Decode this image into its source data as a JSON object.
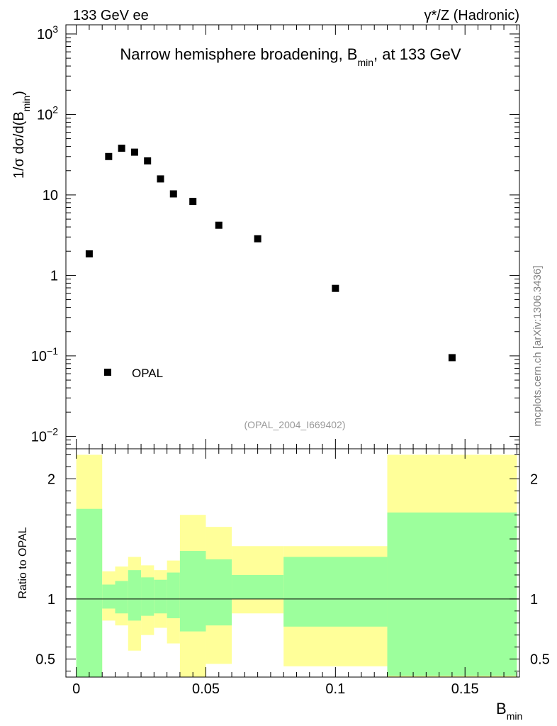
{
  "header": {
    "left": "133 GeV ee",
    "right": "γ*/Z (Hadronic)"
  },
  "watermark": "mcplots.cern.ch [arXiv:1306.3436]",
  "chart_data": [
    {
      "type": "scatter",
      "title_main": "Narrow hemisphere broadening, B",
      "title_sub": "min",
      "title_tail": ", at 133 GeV",
      "reference": "(OPAL_2004_I669402)",
      "ylabel": {
        "pre": "1/σ  dσ/d(B",
        "sub": "min",
        "post": ")"
      },
      "yscale": "log",
      "ylim": [
        0.007,
        1300
      ],
      "xlim": [
        -0.004,
        0.171
      ],
      "ytick_labels": [
        {
          "value": 1000,
          "base": "10",
          "exp": "3"
        },
        {
          "value": 100,
          "base": "10",
          "exp": "2"
        },
        {
          "value": 10,
          "base": "10",
          "exp": ""
        },
        {
          "value": 1,
          "base": "1",
          "exp": ""
        },
        {
          "value": 0.1,
          "base": "10",
          "exp": "−1"
        },
        {
          "value": 0.01,
          "base": "10",
          "exp": "−2"
        }
      ],
      "legend": {
        "placement": "bottom-left",
        "label": "OPAL"
      },
      "series": [
        {
          "name": "OPAL",
          "x": [
            0.005,
            0.0125,
            0.0175,
            0.0225,
            0.0275,
            0.0325,
            0.0375,
            0.045,
            0.055,
            0.07,
            0.1,
            0.145
          ],
          "y": [
            1.85,
            30.0,
            38.0,
            34.0,
            26.5,
            15.8,
            10.3,
            8.3,
            4.2,
            2.85,
            0.69,
            0.095
          ]
        }
      ]
    },
    {
      "type": "ratio",
      "ylabel": "Ratio to OPAL",
      "ylim": [
        0.35,
        2.25
      ],
      "xlim": [
        -0.004,
        0.171
      ],
      "yticks": [
        2,
        1,
        0.5
      ],
      "ytick_labels": [
        "2",
        "1",
        "0.5"
      ],
      "xticks": [
        0,
        0.05,
        0.1,
        0.15
      ],
      "xtick_labels": [
        "0",
        "0.05",
        "0.1",
        "0.15"
      ],
      "xlabel": {
        "main": "B",
        "sub": "min"
      },
      "band_colors": {
        "inner": "#9cff9c",
        "outer": "#ffff99"
      },
      "bands": [
        {
          "x0": 0.0,
          "x1": 0.01,
          "outer": [
            0.35,
            2.2
          ],
          "inner": [
            0.35,
            1.75
          ]
        },
        {
          "x0": 0.01,
          "x1": 0.015,
          "outer": [
            0.82,
            1.23
          ],
          "inner": [
            0.92,
            1.12
          ]
        },
        {
          "x0": 0.015,
          "x1": 0.02,
          "outer": [
            0.78,
            1.27
          ],
          "inner": [
            0.88,
            1.15
          ]
        },
        {
          "x0": 0.02,
          "x1": 0.025,
          "outer": [
            0.57,
            1.35
          ],
          "inner": [
            0.82,
            1.24
          ]
        },
        {
          "x0": 0.025,
          "x1": 0.03,
          "outer": [
            0.7,
            1.28
          ],
          "inner": [
            0.86,
            1.18
          ]
        },
        {
          "x0": 0.03,
          "x1": 0.035,
          "outer": [
            0.76,
            1.24
          ],
          "inner": [
            0.88,
            1.16
          ]
        },
        {
          "x0": 0.035,
          "x1": 0.04,
          "outer": [
            0.63,
            1.32
          ],
          "inner": [
            0.84,
            1.22
          ]
        },
        {
          "x0": 0.04,
          "x1": 0.05,
          "outer": [
            0.35,
            1.7
          ],
          "inner": [
            0.73,
            1.4
          ]
        },
        {
          "x0": 0.05,
          "x1": 0.06,
          "outer": [
            0.46,
            1.6
          ],
          "inner": [
            0.78,
            1.33
          ]
        },
        {
          "x0": 0.06,
          "x1": 0.08,
          "outer": [
            0.88,
            1.44
          ],
          "inner": [
            1.0,
            1.2
          ]
        },
        {
          "x0": 0.08,
          "x1": 0.12,
          "outer": [
            0.44,
            1.44
          ],
          "inner": [
            0.77,
            1.35
          ]
        },
        {
          "x0": 0.12,
          "x1": 0.17,
          "outer": [
            0.35,
            2.2
          ],
          "inner": [
            0.36,
            1.72
          ]
        }
      ]
    }
  ]
}
